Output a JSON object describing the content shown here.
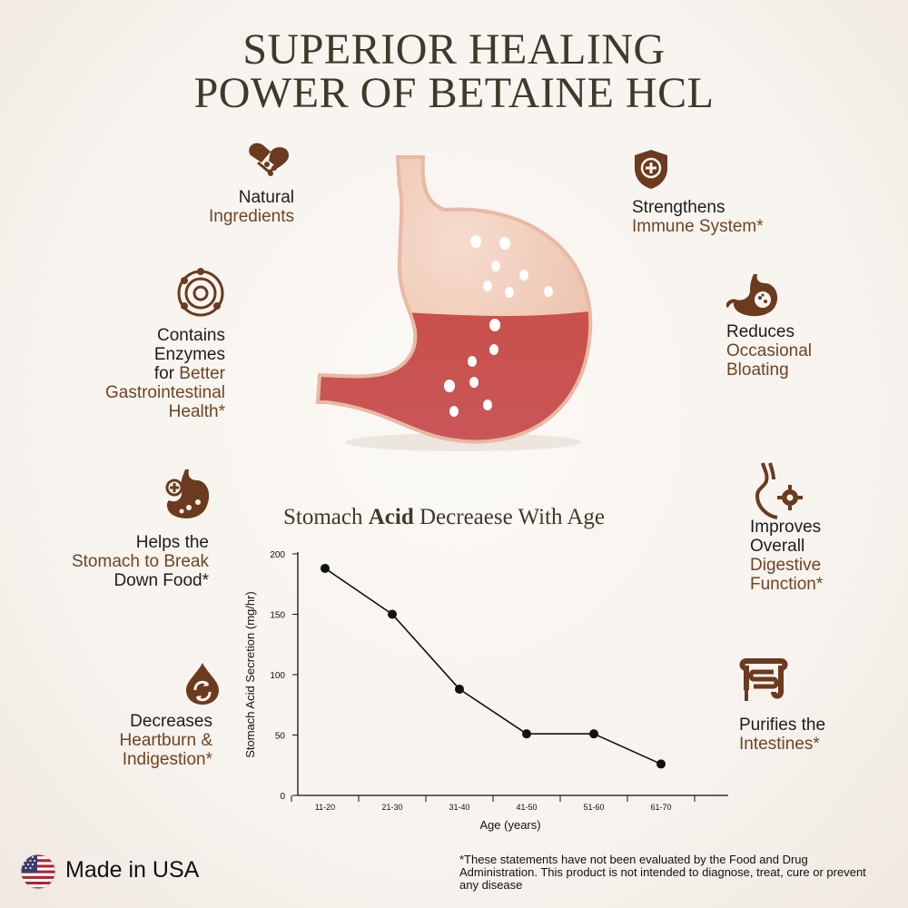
{
  "title": {
    "line1": "SUPERIOR HEALING",
    "line2": "POWER OF BETAINE HCL"
  },
  "features_left": [
    {
      "icon": "pill-capsule-icon",
      "line1": "Natural",
      "line2": "Ingredients"
    },
    {
      "icon": "enzyme-atom-icon",
      "line1": "Contains",
      "line2": "Enzymes",
      "line3a": "for ",
      "line3b": "Better",
      "line4": "Gastrointestinal",
      "line5": "Health*"
    },
    {
      "icon": "stomach-digest-icon",
      "line1": "Helps the",
      "line2": "Stomach to Break",
      "line3": "Down Food*"
    },
    {
      "icon": "acid-drop-icon",
      "line1": "Decreases",
      "line2": "Heartburn &",
      "line3": "Indigestion*"
    }
  ],
  "features_right": [
    {
      "icon": "shield-plus-icon",
      "line1": "Strengthens",
      "line2": "Immune System*"
    },
    {
      "icon": "bloated-stomach-icon",
      "line1": "Reduces",
      "line2": "Occasional",
      "line3": "Bloating"
    },
    {
      "icon": "digestive-system-icon",
      "line1": "Improves",
      "line2": "Overall",
      "line3": "Digestive",
      "line4": "Function*"
    },
    {
      "icon": "intestines-icon",
      "line1": "Purifies the",
      "line2": "Intestines*"
    }
  ],
  "chart_title": {
    "part1": "Stomach ",
    "part2": "Acid",
    "part3": " Decreaese With Age"
  },
  "chart_data": {
    "type": "line",
    "title": "Stomach Acid Decreaese With Age",
    "xlabel": "Age (years)",
    "ylabel": "Stomach Acid Secretion (mg/hr)",
    "categories": [
      "11-20",
      "21-30",
      "31-40",
      "41-50",
      "51-60",
      "61-70"
    ],
    "x": [
      "11-20",
      "21-30",
      "31-40",
      "41-50",
      "51-60",
      "61-70"
    ],
    "values": [
      188,
      150,
      88,
      51,
      51,
      26
    ],
    "ylim": [
      0,
      200
    ],
    "yticks": [
      0,
      50,
      100,
      150,
      200
    ],
    "grid": false,
    "marker": "circle"
  },
  "footer": {
    "made_in": "Made in USA",
    "disclaimer": "*These statements have not been evaluated by the Food and Drug Administration. This product is not intended to diagnose, treat, cure or prevent any disease"
  },
  "colors": {
    "accent_brown": "#6f4424",
    "icon_brown": "#6b3a1f",
    "title_olive": "#3b3b29",
    "stomach_red": "#c7524c",
    "stomach_pink": "#f0c9b5"
  }
}
